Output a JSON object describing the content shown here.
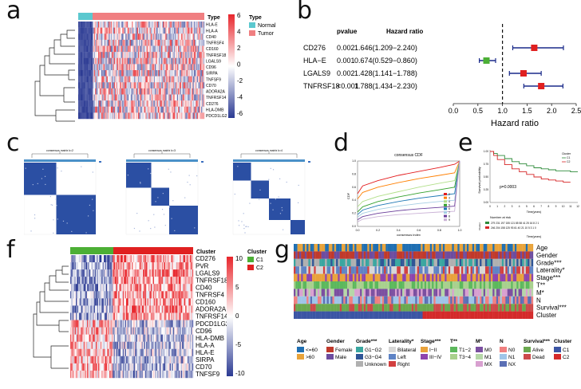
{
  "panel_labels": [
    "a",
    "b",
    "c",
    "d",
    "e",
    "f",
    "g"
  ],
  "colors": {
    "red": "#e8262c",
    "blue": "#2b3a93",
    "white": "#ffffff",
    "normal": "#5bc8cf",
    "tumor": "#f07f81",
    "green": "#4caf35",
    "forest_box": "#e02020",
    "forest_line": "#1a2a8a"
  },
  "panel_a": {
    "genes": [
      "HLA-E",
      "HLA-A",
      "CD40",
      "TNFRSF4",
      "CD160",
      "TNFRSF18",
      "LGALS9",
      "CD96",
      "SIRPA",
      "TNFSF9",
      "CD70",
      "ADORA2A",
      "TNFRSF14",
      "CD276",
      "HLA-DMB",
      "PDCD1LG2"
    ],
    "legend_ticks": [
      "6",
      "4",
      "2",
      "0",
      "-2",
      "-4",
      "-6"
    ],
    "type_title": "Type",
    "type_legend_title": "Type",
    "type_legend": [
      "Normal",
      "Tumor"
    ]
  },
  "panel_b": {
    "col_pvalue": "pvalue",
    "col_hr": "Hazard ratio",
    "rows": [
      {
        "gene": "CD276",
        "p": "0.002",
        "hr": "1.646(1.209−2.240)",
        "est": 1.646,
        "lo": 1.209,
        "hi": 2.24
      },
      {
        "gene": "HLA−E",
        "p": "0.001",
        "hr": "0.674(0.529−0.860)",
        "est": 0.674,
        "lo": 0.529,
        "hi": 0.86
      },
      {
        "gene": "LGALS9",
        "p": "0.002",
        "hr": "1.428(1.141−1.788)",
        "est": 1.428,
        "lo": 1.141,
        "hi": 1.788
      },
      {
        "gene": "TNFRSF18",
        "p": "<0.001",
        "hr": "1.788(1.434−2.230)",
        "est": 1.788,
        "lo": 1.434,
        "hi": 2.23
      }
    ],
    "axis_ticks": [
      "0.0",
      "0.5",
      "1.0",
      "1.5",
      "2.0",
      "2.5"
    ],
    "xlabel": "Hazard ratio"
  },
  "panel_c": {
    "titles": [
      "consensus matrix k=2",
      "consensus matrix k=3",
      "consensus matrix k=4"
    ]
  },
  "chart_data": [
    {
      "type": "line",
      "title": "consensus CDF",
      "xlabel": "consensus index",
      "ylabel": "CDF",
      "xlim": [
        0,
        1
      ],
      "ylim": [
        0,
        1
      ],
      "x": [
        0,
        0.05,
        0.2,
        0.4,
        0.6,
        0.8,
        0.95,
        1.0
      ],
      "series": [
        {
          "name": "2",
          "color": "#e31a1c",
          "values": [
            0.5,
            0.62,
            0.7,
            0.78,
            0.84,
            0.9,
            0.95,
            1.0
          ]
        },
        {
          "name": "3",
          "color": "#ff7f00",
          "values": [
            0.42,
            0.52,
            0.6,
            0.67,
            0.73,
            0.78,
            0.82,
            1.0
          ]
        },
        {
          "name": "4",
          "color": "#b2df8a",
          "values": [
            0.3,
            0.38,
            0.46,
            0.53,
            0.6,
            0.66,
            0.7,
            1.0
          ]
        },
        {
          "name": "5",
          "color": "#33a02c",
          "values": [
            0.22,
            0.3,
            0.38,
            0.45,
            0.51,
            0.56,
            0.6,
            1.0
          ]
        },
        {
          "name": "6",
          "color": "#1f78b4",
          "values": [
            0.18,
            0.25,
            0.32,
            0.38,
            0.43,
            0.47,
            0.5,
            1.0
          ]
        },
        {
          "name": "7",
          "color": "#a6cee3",
          "values": [
            0.14,
            0.2,
            0.26,
            0.31,
            0.35,
            0.38,
            0.4,
            1.0
          ]
        },
        {
          "name": "8",
          "color": "#6a3d9a",
          "values": [
            0.1,
            0.15,
            0.2,
            0.24,
            0.27,
            0.29,
            0.31,
            1.0
          ]
        },
        {
          "name": "9",
          "color": "#cab2d6",
          "values": [
            0.07,
            0.11,
            0.15,
            0.18,
            0.2,
            0.22,
            0.23,
            1.0
          ]
        }
      ]
    },
    {
      "type": "line",
      "title": "Kaplan-Meier survival",
      "xlabel": "Time(years)",
      "ylabel": "Survival probability",
      "xlim": [
        0,
        12
      ],
      "ylim": [
        0,
        1
      ],
      "series": [
        {
          "name": "C1",
          "color": "#2e8b3a",
          "x": [
            0,
            0.5,
            1,
            2,
            3,
            4,
            5,
            6,
            7,
            8,
            9,
            10,
            11,
            12
          ],
          "values": [
            1,
            0.96,
            0.92,
            0.86,
            0.8,
            0.76,
            0.72,
            0.68,
            0.66,
            0.64,
            0.62,
            0.62,
            0.6,
            0.6
          ]
        },
        {
          "name": "C2",
          "color": "#d62728",
          "x": [
            0,
            0.5,
            1,
            2,
            3,
            4,
            5,
            6,
            7,
            8,
            9,
            10,
            11
          ],
          "values": [
            1,
            0.92,
            0.84,
            0.74,
            0.66,
            0.6,
            0.55,
            0.5,
            0.46,
            0.44,
            0.42,
            0.4,
            0.4
          ]
        }
      ],
      "pvalue": "p=0.0003"
    }
  ],
  "panel_d": {
    "title": "consensus CDF",
    "ylabel": "CDF",
    "xlabel": "consensus index",
    "xticks": [
      "0.0",
      "0.2",
      "0.4",
      "0.6",
      "0.8",
      "1.0"
    ],
    "yticks": [
      "0.0",
      "0.2",
      "0.4",
      "0.6",
      "0.8",
      "1.0"
    ]
  },
  "panel_e": {
    "legend_title": "Cluster",
    "legend": [
      "C1",
      "C2"
    ],
    "ylabel": "Survival probability",
    "xlabel": "Time(years)",
    "xticks": [
      "0",
      "1",
      "2",
      "3",
      "4",
      "5",
      "6",
      "7",
      "8",
      "9",
      "10",
      "11",
      "12"
    ],
    "yticks": [
      "0.00",
      "0.25",
      "0.50",
      "0.75",
      "1.00"
    ],
    "pvalue": "p=0.0003",
    "risk_title": "Number at risk",
    "risk_ylabel": "Cluster",
    "risk_rows": [
      {
        "name": "C1",
        "values": "279 231 197 155 121 85 58 41 25 16 8 2 1"
      },
      {
        "name": "C2",
        "values": "246 204 158 125 93 61 40 21 10 5 3 1 0"
      }
    ],
    "risk_xlabel": "Time(years)"
  },
  "panel_f": {
    "genes": [
      "CD276",
      "PVR",
      "LGALS9",
      "TNFRSF18",
      "CD40",
      "TNFRSF4",
      "CD160",
      "ADORA2A",
      "TNFRSF14",
      "PDCD1LG2",
      "CD96",
      "HLA-DMB",
      "HLA-A",
      "HLA-E",
      "SIRPA",
      "CD70",
      "TNFSF9"
    ],
    "cluster_title": "Cluster",
    "legend_ticks": [
      "10",
      "5",
      "0",
      "-5",
      "-10"
    ],
    "cluster_legend_title": "Cluster",
    "cluster_legend": [
      "C1",
      "C2"
    ]
  },
  "panel_g": {
    "rows": [
      "Age",
      "Gender",
      "Grade***",
      "Laterality*",
      "Stage***",
      "T**",
      "M*",
      "N",
      "Survival***",
      "Cluster"
    ],
    "legend_groups": [
      {
        "title": "Age",
        "items": [
          {
            "label": "<=60",
            "color": "#1f6fb2"
          },
          {
            "label": ">60",
            "color": "#e8a33a"
          }
        ]
      },
      {
        "title": "Gender",
        "items": [
          {
            "label": "Female",
            "color": "#c0392b"
          },
          {
            "label": "Male",
            "color": "#6d4c9f"
          }
        ]
      },
      {
        "title": "Grade***",
        "items": [
          {
            "label": "G1−G2",
            "color": "#3aa6a0"
          },
          {
            "label": "G3−G4",
            "color": "#2f5596"
          },
          {
            "label": "Unknown",
            "color": "#b0b0b0"
          }
        ]
      },
      {
        "title": "Laterality*",
        "items": [
          {
            "label": "Bilateral",
            "color": "#d7d7d7"
          },
          {
            "label": "Left",
            "color": "#5e83c5"
          },
          {
            "label": "Right",
            "color": "#d23f3f"
          }
        ]
      },
      {
        "title": "Stage***",
        "items": [
          {
            "label": "I−II",
            "color": "#e9a23b"
          },
          {
            "label": "III−IV",
            "color": "#8e44ad"
          }
        ]
      },
      {
        "title": "T**",
        "items": [
          {
            "label": "T1−2",
            "color": "#5cb85c"
          },
          {
            "label": "T3−4",
            "color": "#a8d08d"
          }
        ]
      },
      {
        "title": "M*",
        "items": [
          {
            "label": "M0",
            "color": "#7b4fa0"
          },
          {
            "label": "M1",
            "color": "#b6d7a8"
          },
          {
            "label": "MX",
            "color": "#d8a0d0"
          }
        ]
      },
      {
        "title": "N",
        "items": [
          {
            "label": "N0",
            "color": "#f08080"
          },
          {
            "label": "N1",
            "color": "#9fc5e8"
          },
          {
            "label": "NX",
            "color": "#5b6fb5"
          }
        ]
      },
      {
        "title": "Survival***",
        "items": [
          {
            "label": "Alive",
            "color": "#6aa84f"
          },
          {
            "label": "Dead",
            "color": "#cc4a4a"
          }
        ]
      },
      {
        "title": "Cluster",
        "items": [
          {
            "label": "C1",
            "color": "#3b55a4"
          },
          {
            "label": "C2",
            "color": "#d42a2a"
          }
        ]
      }
    ]
  }
}
